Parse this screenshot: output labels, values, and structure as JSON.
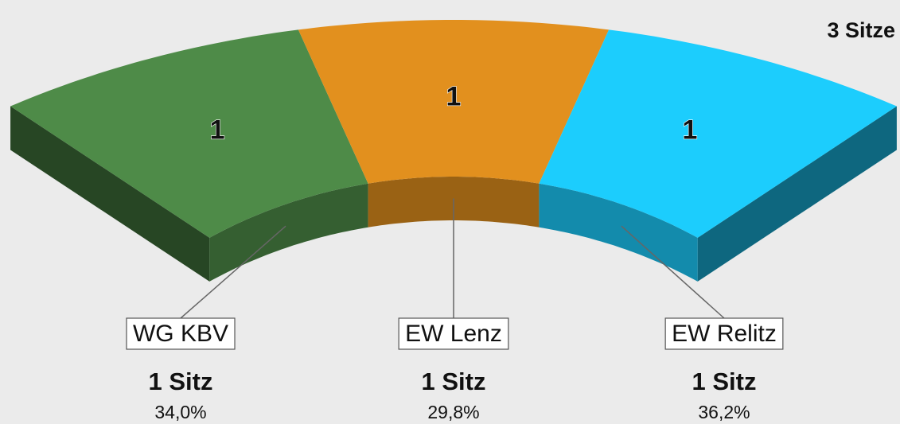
{
  "chart_data": {
    "type": "seats",
    "title": "3 Sitze",
    "categories": [
      "WG KBV",
      "EW Lenz",
      "EW Relitz"
    ],
    "values": [
      1,
      1,
      1
    ],
    "colors": [
      "#4e8b48",
      "#e2901e",
      "#1ccdfd"
    ],
    "seat_labels": [
      "1 Sitz",
      "1 Sitz",
      "1 Sitz"
    ],
    "shares": [
      34.0,
      29.8,
      36.2
    ],
    "share_labels": [
      "34,0%",
      "29,8%",
      "36,2%"
    ]
  }
}
